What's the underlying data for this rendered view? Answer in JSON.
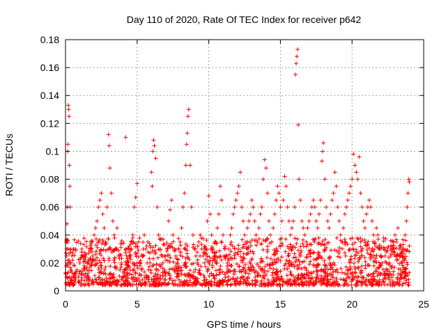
{
  "chart_data": {
    "type": "scatter",
    "title": "Day 110 of 2020, Rate Of TEC Index for receiver p642",
    "xlabel": "GPS time / hours",
    "ylabel": "ROTI / TECUs",
    "xlim": [
      0,
      25
    ],
    "ylim": [
      0,
      0.18
    ],
    "xticks": [
      0,
      5,
      10,
      15,
      20,
      25
    ],
    "xtick_labels": [
      "0",
      "5",
      "10",
      "15",
      "20",
      "25"
    ],
    "yticks": [
      0,
      0.02,
      0.04,
      0.06,
      0.08,
      0.1,
      0.12,
      0.14,
      0.16,
      0.18
    ],
    "ytick_labels": [
      "0",
      "0.02",
      "0.04",
      "0.06",
      "0.08",
      "0.1",
      "0.12",
      "0.14",
      "0.16",
      "0.18"
    ],
    "grid": true,
    "marker": "+",
    "color": "#ff0000",
    "series": [
      {
        "points": [
          [
            0.02,
            0.012
          ],
          [
            0.05,
            0.018
          ],
          [
            0.08,
            0.025
          ],
          [
            0.1,
            0.048
          ],
          [
            0.12,
            0.06
          ],
          [
            0.15,
            0.1
          ],
          [
            0.17,
            0.105
          ],
          [
            0.2,
            0.133
          ],
          [
            0.22,
            0.13
          ],
          [
            0.25,
            0.125
          ],
          [
            0.27,
            0.09
          ],
          [
            0.3,
            0.075
          ],
          [
            0.32,
            0.06
          ],
          [
            0.35,
            0.03
          ],
          [
            0.38,
            0.02
          ],
          [
            0.4,
            0.015
          ],
          [
            0.45,
            0.01
          ],
          [
            0.5,
            0.022
          ],
          [
            0.55,
            0.03
          ],
          [
            0.6,
            0.018
          ],
          [
            0.65,
            0.012
          ],
          [
            0.7,
            0.008
          ],
          [
            0.8,
            0.015
          ],
          [
            0.9,
            0.01
          ],
          [
            1.0,
            0.02
          ],
          [
            1.1,
            0.012
          ],
          [
            1.2,
            0.025
          ],
          [
            1.3,
            0.018
          ],
          [
            1.4,
            0.01
          ],
          [
            1.5,
            0.015
          ],
          [
            1.6,
            0.02
          ],
          [
            1.7,
            0.03
          ],
          [
            1.8,
            0.035
          ],
          [
            1.9,
            0.025
          ],
          [
            2.0,
            0.04
          ],
          [
            2.1,
            0.045
          ],
          [
            2.2,
            0.05
          ],
          [
            2.3,
            0.06
          ],
          [
            2.4,
            0.065
          ],
          [
            2.5,
            0.07
          ],
          [
            2.6,
            0.055
          ],
          [
            2.7,
            0.045
          ],
          [
            2.8,
            0.035
          ],
          [
            2.9,
            0.06
          ],
          [
            3.0,
            0.112
          ],
          [
            3.05,
            0.104
          ],
          [
            3.1,
            0.088
          ],
          [
            3.2,
            0.07
          ],
          [
            3.3,
            0.05
          ],
          [
            3.4,
            0.04
          ],
          [
            3.5,
            0.03
          ],
          [
            3.6,
            0.045
          ],
          [
            3.7,
            0.025
          ],
          [
            3.8,
            0.015
          ],
          [
            3.9,
            0.02
          ],
          [
            4.0,
            0.01
          ],
          [
            4.1,
            0.015
          ],
          [
            4.2,
            0.11
          ],
          [
            4.3,
            0.02
          ],
          [
            4.4,
            0.018
          ],
          [
            4.5,
            0.025
          ],
          [
            4.6,
            0.03
          ],
          [
            4.7,
            0.04
          ],
          [
            4.8,
            0.06
          ],
          [
            4.9,
            0.067
          ],
          [
            5.0,
            0.077
          ],
          [
            5.1,
            0.035
          ],
          [
            5.2,
            0.02
          ],
          [
            5.3,
            0.015
          ],
          [
            5.4,
            0.025
          ],
          [
            5.5,
            0.04
          ],
          [
            5.6,
            0.03
          ],
          [
            5.7,
            0.02
          ],
          [
            5.8,
            0.015
          ],
          [
            5.9,
            0.02
          ],
          [
            6.0,
            0.085
          ],
          [
            6.05,
            0.075
          ],
          [
            6.1,
            0.1
          ],
          [
            6.15,
            0.108
          ],
          [
            6.2,
            0.104
          ],
          [
            6.3,
            0.095
          ],
          [
            6.4,
            0.06
          ],
          [
            6.5,
            0.04
          ],
          [
            6.6,
            0.03
          ],
          [
            6.7,
            0.025
          ],
          [
            6.8,
            0.02
          ],
          [
            6.9,
            0.015
          ],
          [
            7.0,
            0.022
          ],
          [
            7.1,
            0.03
          ],
          [
            7.2,
            0.05
          ],
          [
            7.3,
            0.058
          ],
          [
            7.4,
            0.065
          ],
          [
            7.5,
            0.04
          ],
          [
            7.6,
            0.03
          ],
          [
            7.7,
            0.025
          ],
          [
            7.8,
            0.02
          ],
          [
            7.9,
            0.03
          ],
          [
            8.0,
            0.035
          ],
          [
            8.1,
            0.045
          ],
          [
            8.2,
            0.06
          ],
          [
            8.3,
            0.07
          ],
          [
            8.4,
            0.09
          ],
          [
            8.45,
            0.105
          ],
          [
            8.5,
            0.113
          ],
          [
            8.55,
            0.125
          ],
          [
            8.6,
            0.13
          ],
          [
            8.7,
            0.09
          ],
          [
            8.8,
            0.06
          ],
          [
            8.9,
            0.04
          ],
          [
            9.0,
            0.03
          ],
          [
            9.1,
            0.025
          ],
          [
            9.2,
            0.02
          ],
          [
            9.3,
            0.035
          ],
          [
            9.4,
            0.04
          ],
          [
            9.5,
            0.03
          ],
          [
            9.6,
            0.025
          ],
          [
            9.7,
            0.02
          ],
          [
            9.8,
            0.03
          ],
          [
            9.9,
            0.05
          ],
          [
            10.0,
            0.068
          ],
          [
            10.1,
            0.055
          ],
          [
            10.2,
            0.04
          ],
          [
            10.3,
            0.03
          ],
          [
            10.4,
            0.025
          ],
          [
            10.5,
            0.035
          ],
          [
            10.6,
            0.045
          ],
          [
            10.7,
            0.055
          ],
          [
            10.8,
            0.075
          ],
          [
            10.9,
            0.065
          ],
          [
            11.0,
            0.04
          ],
          [
            11.1,
            0.03
          ],
          [
            11.2,
            0.025
          ],
          [
            11.3,
            0.02
          ],
          [
            11.4,
            0.03
          ],
          [
            11.5,
            0.04
          ],
          [
            11.6,
            0.045
          ],
          [
            11.7,
            0.055
          ],
          [
            11.8,
            0.06
          ],
          [
            11.9,
            0.065
          ],
          [
            12.0,
            0.07
          ],
          [
            12.1,
            0.075
          ],
          [
            12.2,
            0.085
          ],
          [
            12.3,
            0.06
          ],
          [
            12.4,
            0.05
          ],
          [
            12.5,
            0.04
          ],
          [
            12.6,
            0.035
          ],
          [
            12.7,
            0.045
          ],
          [
            12.8,
            0.05
          ],
          [
            12.9,
            0.055
          ],
          [
            13.0,
            0.065
          ],
          [
            13.1,
            0.06
          ],
          [
            13.2,
            0.05
          ],
          [
            13.3,
            0.04
          ],
          [
            13.4,
            0.035
          ],
          [
            13.5,
            0.045
          ],
          [
            13.6,
            0.055
          ],
          [
            13.7,
            0.06
          ],
          [
            13.8,
            0.08
          ],
          [
            13.9,
            0.094
          ],
          [
            14.0,
            0.088
          ],
          [
            14.1,
            0.07
          ],
          [
            14.2,
            0.05
          ],
          [
            14.3,
            0.04
          ],
          [
            14.4,
            0.035
          ],
          [
            14.5,
            0.045
          ],
          [
            14.6,
            0.055
          ],
          [
            14.7,
            0.065
          ],
          [
            14.8,
            0.075
          ],
          [
            14.9,
            0.07
          ],
          [
            15.0,
            0.06
          ],
          [
            15.1,
            0.05
          ],
          [
            15.2,
            0.065
          ],
          [
            15.3,
            0.082
          ],
          [
            15.4,
            0.075
          ],
          [
            15.5,
            0.06
          ],
          [
            15.6,
            0.05
          ],
          [
            15.7,
            0.04
          ],
          [
            15.8,
            0.045
          ],
          [
            15.9,
            0.05
          ],
          [
            16.0,
            0.06
          ],
          [
            16.05,
            0.155
          ],
          [
            16.1,
            0.163
          ],
          [
            16.15,
            0.168
          ],
          [
            16.2,
            0.173
          ],
          [
            16.25,
            0.119
          ],
          [
            16.3,
            0.08
          ],
          [
            16.4,
            0.065
          ],
          [
            16.5,
            0.05
          ],
          [
            16.6,
            0.045
          ],
          [
            16.7,
            0.04
          ],
          [
            16.8,
            0.035
          ],
          [
            16.9,
            0.045
          ],
          [
            17.0,
            0.05
          ],
          [
            17.1,
            0.055
          ],
          [
            17.2,
            0.06
          ],
          [
            17.3,
            0.065
          ],
          [
            17.4,
            0.06
          ],
          [
            17.5,
            0.05
          ],
          [
            17.6,
            0.045
          ],
          [
            17.7,
            0.055
          ],
          [
            17.8,
            0.065
          ],
          [
            17.9,
            0.093
          ],
          [
            17.95,
            0.1
          ],
          [
            18.0,
            0.106
          ],
          [
            18.1,
            0.08
          ],
          [
            18.2,
            0.06
          ],
          [
            18.3,
            0.05
          ],
          [
            18.4,
            0.045
          ],
          [
            18.5,
            0.055
          ],
          [
            18.6,
            0.065
          ],
          [
            18.7,
            0.07
          ],
          [
            18.8,
            0.085
          ],
          [
            18.9,
            0.075
          ],
          [
            19.0,
            0.06
          ],
          [
            19.1,
            0.05
          ],
          [
            19.2,
            0.04
          ],
          [
            19.3,
            0.035
          ],
          [
            19.4,
            0.045
          ],
          [
            19.5,
            0.055
          ],
          [
            19.6,
            0.06
          ],
          [
            19.7,
            0.065
          ],
          [
            19.8,
            0.07
          ],
          [
            19.9,
            0.075
          ],
          [
            20.0,
            0.08
          ],
          [
            20.1,
            0.098
          ],
          [
            20.2,
            0.09
          ],
          [
            20.3,
            0.085
          ],
          [
            20.4,
            0.08
          ],
          [
            20.5,
            0.096
          ],
          [
            20.6,
            0.07
          ],
          [
            20.7,
            0.06
          ],
          [
            20.8,
            0.05
          ],
          [
            20.9,
            0.045
          ],
          [
            21.0,
            0.055
          ],
          [
            21.1,
            0.06
          ],
          [
            21.2,
            0.065
          ],
          [
            21.3,
            0.06
          ],
          [
            21.4,
            0.05
          ],
          [
            21.5,
            0.04
          ],
          [
            21.6,
            0.035
          ],
          [
            21.7,
            0.045
          ],
          [
            21.8,
            0.04
          ],
          [
            21.9,
            0.03
          ],
          [
            22.0,
            0.025
          ],
          [
            22.1,
            0.02
          ],
          [
            22.2,
            0.03
          ],
          [
            22.3,
            0.025
          ],
          [
            22.4,
            0.02
          ],
          [
            22.5,
            0.015
          ],
          [
            22.6,
            0.02
          ],
          [
            22.7,
            0.025
          ],
          [
            22.8,
            0.03
          ],
          [
            22.9,
            0.035
          ],
          [
            23.0,
            0.04
          ],
          [
            23.1,
            0.035
          ],
          [
            23.2,
            0.045
          ],
          [
            23.3,
            0.03
          ],
          [
            23.4,
            0.025
          ],
          [
            23.5,
            0.02
          ],
          [
            23.6,
            0.03
          ],
          [
            23.7,
            0.04
          ],
          [
            23.8,
            0.05
          ],
          [
            23.85,
            0.06
          ],
          [
            23.9,
            0.07
          ],
          [
            23.95,
            0.08
          ],
          [
            24.0,
            0.078
          ]
        ]
      }
    ]
  }
}
